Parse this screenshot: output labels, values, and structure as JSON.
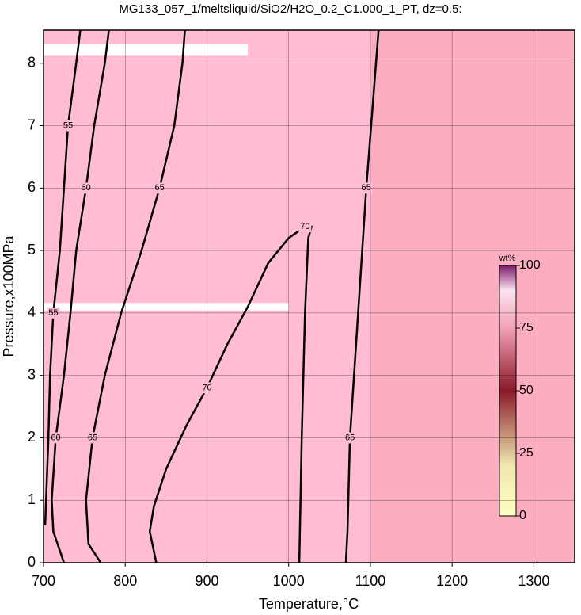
{
  "chart_data": {
    "type": "contour",
    "title": "MG133_057_1/meltsliquid/SiO2/H2O_0.2_C1.000_1_PT, dz=0.5:",
    "x_label": "Temperature,°C",
    "y_label": "Pressure,x100MPa",
    "xlim": [
      700,
      1350
    ],
    "ylim": [
      0,
      8.53
    ],
    "xticks": [
      700,
      800,
      900,
      1000,
      1100,
      1200,
      1300
    ],
    "yticks": [
      0,
      1,
      2,
      3,
      4,
      5,
      6,
      7,
      8
    ],
    "grid": true,
    "missing_bands": [
      {
        "x": [
          700,
          950
        ],
        "y": [
          8.12,
          8.3
        ]
      },
      {
        "x": [
          700,
          1000
        ],
        "y": [
          4.04,
          4.16
        ]
      }
    ],
    "contours": [
      {
        "level": 55,
        "x": [
          702,
          706,
          708,
          712,
          720,
          725,
          730,
          740,
          745
        ],
        "y": [
          0.6,
          2,
          3,
          4,
          5,
          6,
          7,
          8,
          8.53
        ]
      },
      {
        "level": 60,
        "x": [
          725,
          712,
          710,
          715,
          725,
          733,
          740,
          752,
          762,
          775,
          780
        ],
        "y": [
          0,
          0.5,
          1,
          2,
          3,
          4,
          5,
          6,
          7,
          8,
          8.53
        ]
      },
      {
        "level": 65,
        "x": [
          770,
          755,
          752,
          760,
          775,
          795,
          820,
          842,
          860,
          870,
          873
        ],
        "y": [
          0,
          0.3,
          1,
          2,
          3,
          4,
          5,
          6,
          7,
          8,
          8.53
        ]
      },
      {
        "level": 70,
        "x": [
          838,
          830,
          835,
          850,
          875,
          900,
          925,
          950,
          975,
          1000,
          1020,
          1028,
          1024,
          1020,
          1016,
          1013
        ],
        "y": [
          0,
          0.5,
          0.9,
          1.5,
          2.2,
          2.8,
          3.5,
          4.1,
          4.8,
          5.2,
          5.38,
          5.38,
          5.2,
          4,
          2,
          0
        ]
      },
      {
        "level": 65,
        "x": [
          1070,
          1072,
          1075,
          1085,
          1095,
          1110
        ],
        "y": [
          0,
          0.5,
          2,
          4,
          6,
          8.53
        ]
      }
    ],
    "colorbar": {
      "label": "wt%",
      "lim": [
        0,
        100
      ],
      "ticks": [
        0,
        25,
        50,
        75,
        100
      ]
    }
  }
}
